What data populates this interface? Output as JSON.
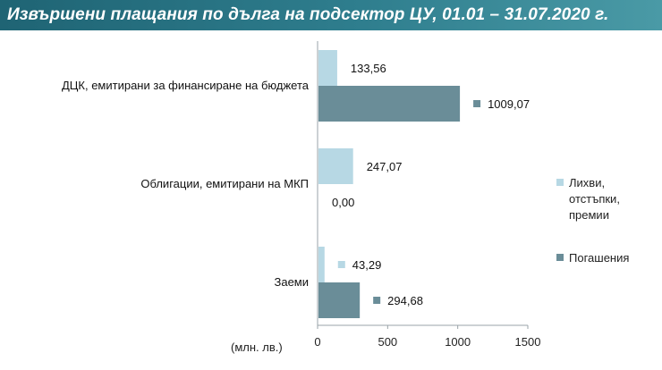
{
  "title": "Извършени плащания по дълга на подсектор ЦУ, 01.01 – 31.07.2020 г.",
  "unit_label": "(млн. лв.)",
  "colors": {
    "title_bar": "#2e7888",
    "interest": "#b7d8e4",
    "repayment": "#6a8d98",
    "axis": "#9aa3a8"
  },
  "chart_data": {
    "type": "bar",
    "orientation": "horizontal",
    "title": "Извършени плащания по дълга на подсектор ЦУ, 01.01 – 31.07.2020 г.",
    "xlabel": "(млн. лв.)",
    "ylabel": "",
    "xlim": [
      0,
      1500
    ],
    "x_ticks": [
      "0",
      "500",
      "1000",
      "1500"
    ],
    "grid": false,
    "legend_position": "right",
    "categories": [
      "ДЦК, емитирани за финансиране на бюджета",
      "Облигации, емитирани на МКП",
      "Заеми"
    ],
    "series": [
      {
        "name": "Лихви, отстъпки, премии",
        "values": [
          133.56,
          247.07,
          43.29
        ],
        "labels": [
          "133,56",
          "247,07",
          "43,29"
        ]
      },
      {
        "name": "Погашения",
        "values": [
          1009.07,
          0.0,
          294.68
        ],
        "labels": [
          "1009,07",
          "0,00",
          "294,68"
        ]
      }
    ]
  }
}
